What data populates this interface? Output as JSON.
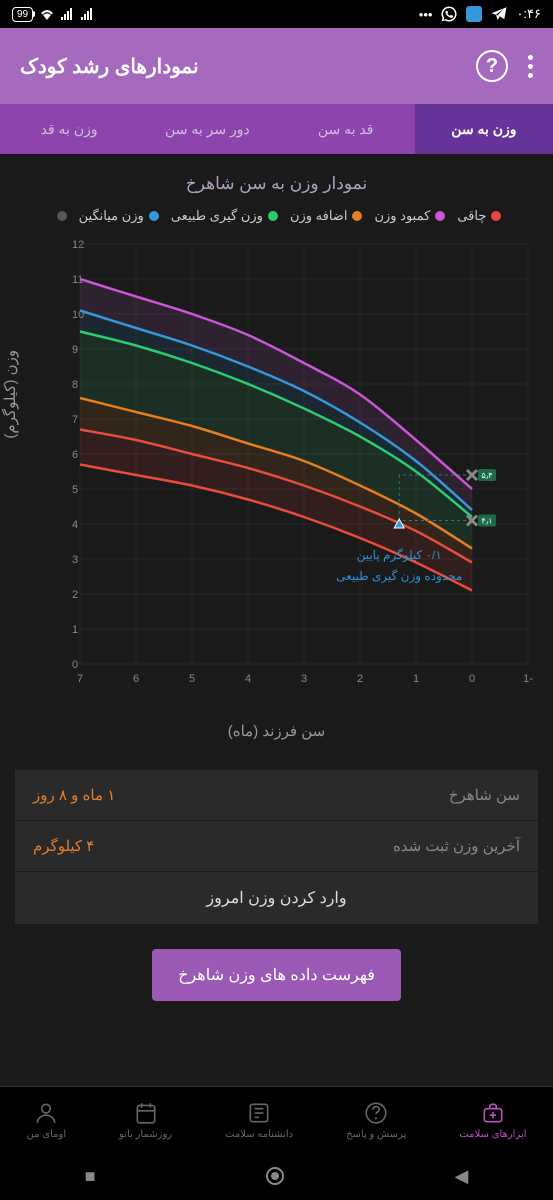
{
  "status": {
    "time": "۰:۴۶",
    "battery": "99"
  },
  "header": {
    "title": "نمودارهای رشد کودک"
  },
  "tabs": [
    {
      "label": "وزن به سن",
      "active": true
    },
    {
      "label": "قد به سن",
      "active": false
    },
    {
      "label": "دور سر به سن",
      "active": false
    },
    {
      "label": "وزن به قد",
      "active": false
    }
  ],
  "chart": {
    "title": "نمودار وزن به سن شاهرخ",
    "legend": [
      {
        "label": "چاقی",
        "color": "#e74c3c"
      },
      {
        "label": "کمبود وزن",
        "color": "#c957d6"
      },
      {
        "label": "اضافه وزن",
        "color": "#e67e22"
      },
      {
        "label": "وزن گیری طبیعی",
        "color": "#2ecc71"
      },
      {
        "label": "وزن میانگین",
        "color": "#3498db"
      },
      {
        "label": "",
        "color": "#555"
      }
    ],
    "y_label": "وزن (کیلوگرم)",
    "x_label": "سن فرزند (ماه)",
    "y_ticks": [
      0,
      1,
      2,
      3,
      4,
      5,
      6,
      7,
      8,
      9,
      10,
      11,
      12
    ],
    "x_ticks": [
      -1,
      0,
      1,
      2,
      3,
      4,
      5,
      6,
      7
    ],
    "y_range": [
      0,
      12
    ],
    "x_range": [
      -1,
      7
    ],
    "curves": {
      "purple_top": {
        "color": "#c957d6",
        "points": [
          [
            0,
            5.0
          ],
          [
            1,
            6.4
          ],
          [
            2,
            7.7
          ],
          [
            3,
            8.6
          ],
          [
            4,
            9.4
          ],
          [
            5,
            10.0
          ],
          [
            6,
            10.5
          ],
          [
            7,
            11.0
          ]
        ]
      },
      "blue": {
        "color": "#3498db",
        "points": [
          [
            0,
            4.4
          ],
          [
            1,
            5.8
          ],
          [
            2,
            6.9
          ],
          [
            3,
            7.8
          ],
          [
            4,
            8.5
          ],
          [
            5,
            9.1
          ],
          [
            6,
            9.6
          ],
          [
            7,
            10.1
          ]
        ]
      },
      "green": {
        "color": "#2ecc71",
        "points": [
          [
            0,
            4.2
          ],
          [
            1,
            5.5
          ],
          [
            2,
            6.5
          ],
          [
            3,
            7.3
          ],
          [
            4,
            8.0
          ],
          [
            5,
            8.6
          ],
          [
            6,
            9.1
          ],
          [
            7,
            9.5
          ]
        ]
      },
      "orange": {
        "color": "#e67e22",
        "points": [
          [
            0,
            3.3
          ],
          [
            1,
            4.3
          ],
          [
            2,
            5.1
          ],
          [
            3,
            5.8
          ],
          [
            4,
            6.3
          ],
          [
            5,
            6.8
          ],
          [
            6,
            7.2
          ],
          [
            7,
            7.6
          ]
        ]
      },
      "red": {
        "color": "#e74c3c",
        "points": [
          [
            0,
            2.9
          ],
          [
            1,
            3.8
          ],
          [
            2,
            4.5
          ],
          [
            3,
            5.1
          ],
          [
            4,
            5.6
          ],
          [
            5,
            6.0
          ],
          [
            6,
            6.4
          ],
          [
            7,
            6.7
          ]
        ]
      },
      "red_bottom": {
        "color": "#e74c3c",
        "points": [
          [
            0,
            2.1
          ],
          [
            1,
            2.9
          ],
          [
            2,
            3.6
          ],
          [
            3,
            4.2
          ],
          [
            4,
            4.7
          ],
          [
            5,
            5.1
          ],
          [
            6,
            5.4
          ],
          [
            7,
            5.7
          ]
        ]
      }
    },
    "markers": [
      {
        "x": 0,
        "y": 5.4,
        "label": "۵٫۴"
      },
      {
        "x": 0,
        "y": 4.1,
        "label": "۴٫۱"
      }
    ],
    "data_point": {
      "x": 1.3,
      "y": 4.0
    },
    "tooltip": {
      "line1": "۰/۱ کیلوگرم پایین",
      "line2": "محدوده وزن گیری طبیعی"
    }
  },
  "info": {
    "age_label": "سن شاهرخ",
    "age_value": "۱ ماه و ۸ روز",
    "weight_label": "آخرین وزن ثبت شده",
    "weight_value": "۴ کیلوگرم",
    "action": "وارد کردن وزن امروز"
  },
  "button": "فهرست داده های وزن شاهرخ",
  "nav": [
    {
      "label": "ابزارهای سلامت",
      "icon": "medkit",
      "active": true
    },
    {
      "label": "پرسش و پاسخ",
      "icon": "question",
      "active": false
    },
    {
      "label": "دانشنامه سلامت",
      "icon": "news",
      "active": false
    },
    {
      "label": "روزشمار بانو",
      "icon": "calendar",
      "active": false
    },
    {
      "label": "اومای من",
      "icon": "profile",
      "active": false
    }
  ]
}
